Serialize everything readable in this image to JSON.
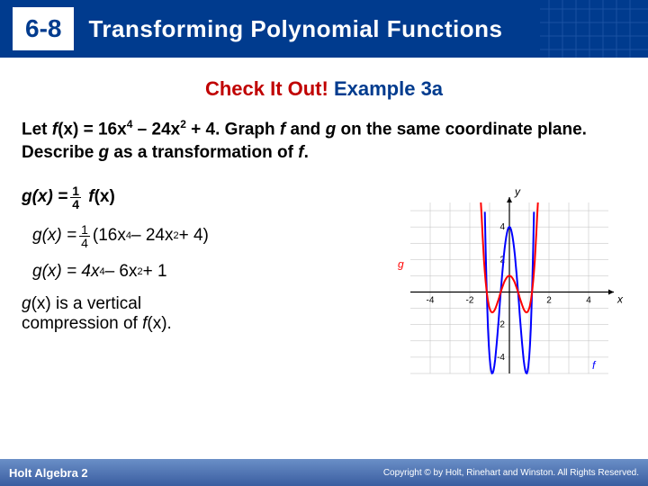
{
  "header": {
    "lesson_number": "6-8",
    "title": "Transforming Polynomial Functions"
  },
  "subtitle": {
    "part1": "Check It Out!",
    "part2": "Example 3a"
  },
  "prompt": {
    "pre": "Let ",
    "fname": "f",
    "eq": "(x) = 16x",
    "exp1": "4",
    "mid1": " – 24x",
    "exp2": "2",
    "mid2": " + 4. Graph ",
    "f2": "f",
    "mid3": " and ",
    "g": "g",
    "mid4": " on the same coordinate plane. Describe ",
    "g2": "g",
    "mid5": " as a transformation of ",
    "f3": "f",
    "end": "."
  },
  "steps": {
    "s1_lhs": "g(x) = ",
    "s1_num": "1",
    "s1_den": "4",
    "s1_rhs_f": "f",
    "s1_rhs": "(x)",
    "s2_lhs": "g(x) =  ",
    "s2_num": "1",
    "s2_den": "4",
    "s2_rhs1": "(16x",
    "s2_e1": "4",
    "s2_rhs2": " – 24x",
    "s2_e2": "2",
    "s2_rhs3": " + 4)",
    "s3_lhs": "g(x) = 4x",
    "s3_e1": "4",
    "s3_mid": " – 6x",
    "s3_e2": "2",
    "s3_end": " + 1"
  },
  "desc": {
    "l1_pre": "",
    "l1_g": "g",
    "l1_post": "(x) is a vertical",
    "l2_pre": "compression of ",
    "l2_f": "f",
    "l2_post": "(x)."
  },
  "graph": {
    "xlim": [
      -5,
      5
    ],
    "ylim": [
      -5,
      5.5
    ],
    "xticks": [
      -4,
      -2,
      2,
      4
    ],
    "yticks": [
      -4,
      -2,
      2,
      4
    ],
    "axis_color": "#000000",
    "grid_color": "#bdbdbd",
    "bg": "#ffffff",
    "f_color": "#0000ff",
    "g_color": "#ff0000",
    "f_label": "f",
    "g_label": "g",
    "x_label": "x",
    "y_label": "y",
    "tick_fontsize": 10,
    "label_fontsize": 12,
    "line_width": 2,
    "sample_step": 0.04
  },
  "footer": {
    "book": "Holt Algebra 2",
    "copy": "Copyright © by Holt, Rinehart and Winston. All Rights Reserved."
  }
}
